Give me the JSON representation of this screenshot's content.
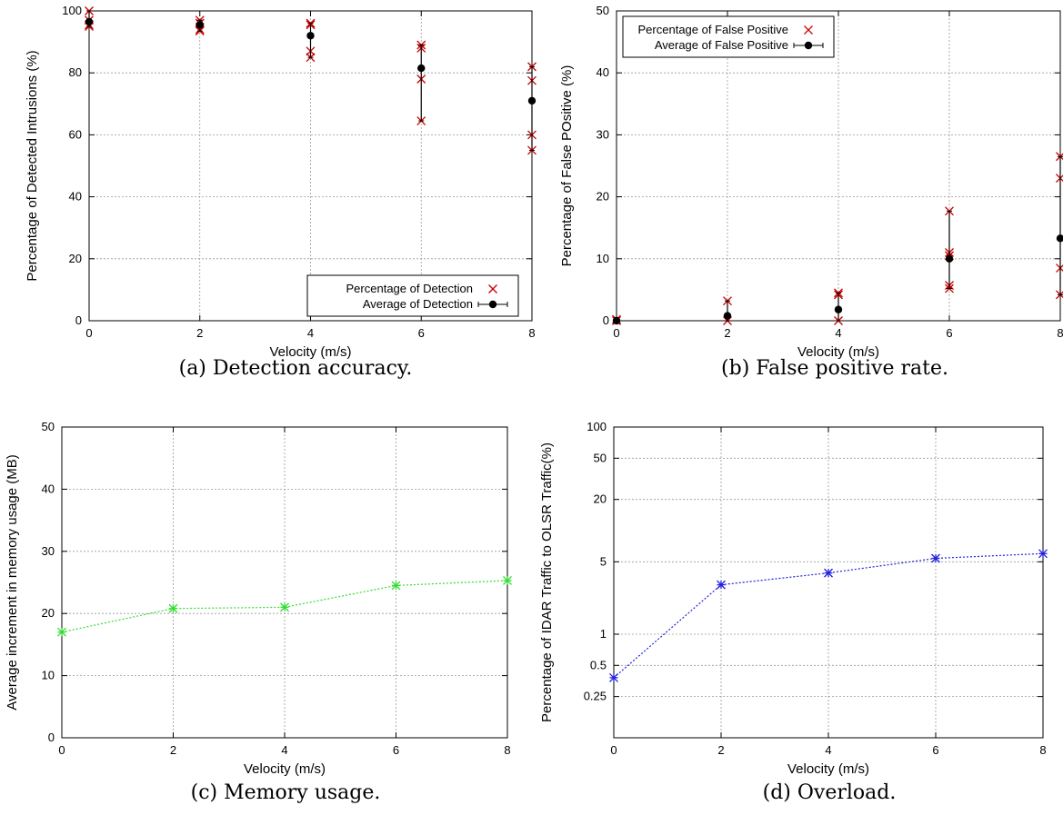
{
  "chart_data": [
    {
      "type": "scatter",
      "caption": "(a) Detection accuracy.",
      "xlabel": "Velocity (m/s)",
      "ylabel": "Percentage of Detected Intrusions (%)",
      "xlim": [
        0,
        8
      ],
      "ylim": [
        0,
        100
      ],
      "xticks": [
        "0",
        "2",
        "4",
        "6",
        "8"
      ],
      "yticks": [
        "0",
        "20",
        "40",
        "60",
        "80",
        "100"
      ],
      "grid": true,
      "legend_position": "bottom-right",
      "series": [
        {
          "name": "Percentage of Detection",
          "color": "#cc0000",
          "marker": "x",
          "points": [
            [
              0,
              100
            ],
            [
              0,
              95.5
            ],
            [
              0,
              95
            ],
            [
              0,
              97
            ],
            [
              2,
              97
            ],
            [
              2,
              96
            ],
            [
              2,
              94
            ],
            [
              2,
              93.5
            ],
            [
              4,
              96
            ],
            [
              4,
              95.5
            ],
            [
              4,
              87
            ],
            [
              4,
              85
            ],
            [
              6,
              89
            ],
            [
              6,
              88
            ],
            [
              6,
              78
            ],
            [
              6,
              64.5
            ],
            [
              8,
              82
            ],
            [
              8,
              77.5
            ],
            [
              8,
              60
            ],
            [
              8,
              55
            ]
          ]
        },
        {
          "name": "Average of Detection",
          "color": "#000000",
          "marker": "circle",
          "errorbars": true,
          "points": [
            [
              0,
              96.5,
              95,
              100
            ],
            [
              2,
              95.5,
              93.5,
              97
            ],
            [
              4,
              92,
              85,
              96
            ],
            [
              6,
              81.5,
              64.5,
              89
            ],
            [
              8,
              71,
              55,
              82
            ]
          ]
        }
      ]
    },
    {
      "type": "scatter",
      "caption": "(b) False positive rate.",
      "xlabel": "Velocity (m/s)",
      "ylabel": "Percentage of False POsitive (%)",
      "xlim": [
        0,
        8
      ],
      "ylim": [
        0,
        50
      ],
      "xticks": [
        "0",
        "2",
        "4",
        "6",
        "8"
      ],
      "yticks": [
        "0",
        "10",
        "20",
        "30",
        "40",
        "50"
      ],
      "grid": true,
      "legend_position": "top-left",
      "series": [
        {
          "name": "Percentage of False Positive",
          "color": "#cc0000",
          "marker": "x",
          "points": [
            [
              0,
              0
            ],
            [
              0,
              0.2
            ],
            [
              2,
              3.2
            ],
            [
              2,
              0
            ],
            [
              4,
              4.5
            ],
            [
              4,
              4.2
            ],
            [
              4,
              0
            ],
            [
              6,
              17.7
            ],
            [
              6,
              11
            ],
            [
              6,
              10.5
            ],
            [
              6,
              5.7
            ],
            [
              6,
              5.2
            ],
            [
              8,
              26.5
            ],
            [
              8,
              23
            ],
            [
              8,
              8.5
            ],
            [
              8,
              4.2
            ]
          ]
        },
        {
          "name": "Average of False Positive",
          "color": "#000000",
          "marker": "circle",
          "errorbars": true,
          "points": [
            [
              0,
              0,
              0,
              0.2
            ],
            [
              2,
              0.8,
              0,
              3.2
            ],
            [
              4,
              1.8,
              0,
              4.5
            ],
            [
              6,
              10,
              5.2,
              17.7
            ],
            [
              8,
              13.3,
              4.2,
              26.5
            ]
          ]
        }
      ]
    },
    {
      "type": "line",
      "caption": "(c) Memory usage.",
      "xlabel": "Velocity (m/s)",
      "ylabel": "Average increment in memory usage (MB)",
      "xlim": [
        0,
        8
      ],
      "ylim": [
        0,
        50
      ],
      "xticks": [
        "0",
        "2",
        "4",
        "6",
        "8"
      ],
      "yticks": [
        "0",
        "10",
        "20",
        "30",
        "40",
        "50"
      ],
      "grid": true,
      "series": [
        {
          "color": "#33dd33",
          "marker": "star",
          "points": [
            [
              0,
              17
            ],
            [
              2,
              20.8
            ],
            [
              4,
              21
            ],
            [
              6,
              24.5
            ],
            [
              8,
              25.3
            ]
          ]
        }
      ]
    },
    {
      "type": "line",
      "caption": "(d) Overload.",
      "xlabel": "Velocity (m/s)",
      "ylabel": "Percentage of IDAR Traffic to OLSR Traffic(%)",
      "xlim": [
        0,
        8
      ],
      "ylim": [
        0.1,
        100
      ],
      "yscale": "log",
      "xticks": [
        "0",
        "2",
        "4",
        "6",
        "8"
      ],
      "yticks": [
        {
          "v": 0.25,
          "label": "0.25"
        },
        {
          "v": 0.5,
          "label": "0.5"
        },
        {
          "v": 1,
          "label": "1"
        },
        {
          "v": 5,
          "label": "5"
        },
        {
          "v": 20,
          "label": "20"
        },
        {
          "v": 50,
          "label": "50"
        },
        {
          "v": 100,
          "label": "100"
        }
      ],
      "grid": true,
      "series": [
        {
          "color": "#2222dd",
          "marker": "star",
          "points": [
            [
              0,
              0.38
            ],
            [
              2,
              3.0
            ],
            [
              4,
              3.9
            ],
            [
              6,
              5.4
            ],
            [
              8,
              6.0
            ]
          ]
        }
      ]
    }
  ]
}
